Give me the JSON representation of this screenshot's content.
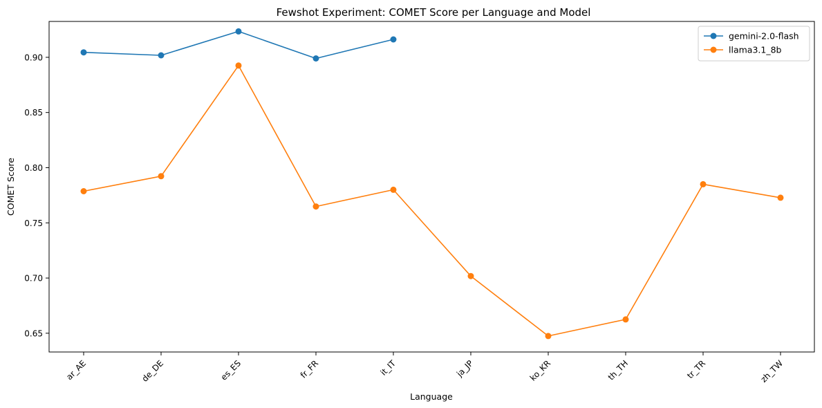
{
  "chart_data": {
    "type": "line",
    "title": "Fewshot Experiment: COMET Score per Language and Model",
    "xlabel": "Language",
    "ylabel": "COMET Score",
    "categories": [
      "ar_AE",
      "de_DE",
      "es_ES",
      "fr_FR",
      "it_IT",
      "ja_JP",
      "ko_KR",
      "th_TH",
      "tr_TR",
      "zh_TW"
    ],
    "ylim": [
      0.633,
      0.9325
    ],
    "yticks": [
      0.65,
      0.7,
      0.75,
      0.8,
      0.85,
      0.9
    ],
    "ytick_labels": [
      "0.65",
      "0.70",
      "0.75",
      "0.80",
      "0.85",
      "0.90"
    ],
    "grid": false,
    "legend_position": "top-right",
    "series": [
      {
        "name": "gemini-2.0-flash",
        "color": "#1f77b4",
        "values": [
          0.9045,
          0.9018,
          0.9235,
          0.899,
          0.9162,
          null,
          null,
          null,
          null,
          null
        ]
      },
      {
        "name": "llama3.1_8b",
        "color": "#ff7f0e",
        "values": [
          0.7787,
          0.7923,
          0.8925,
          0.7648,
          0.78,
          0.7018,
          0.6475,
          0.6625,
          0.785,
          0.7728
        ]
      }
    ]
  }
}
